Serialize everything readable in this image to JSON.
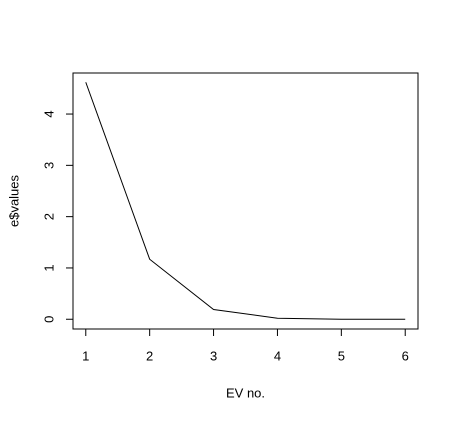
{
  "chart_data": {
    "type": "line",
    "x_label": "EV no.",
    "y_label": "e$values",
    "x": [
      1,
      2,
      3,
      4,
      5,
      6
    ],
    "values": [
      4.62,
      1.17,
      0.19,
      0.02,
      0.0,
      0.0
    ],
    "color": "#000000",
    "xlim": [
      0.8,
      6.2
    ],
    "xticks": [
      1,
      2,
      3,
      4,
      5,
      6
    ],
    "ylim": [
      -0.19,
      4.8
    ],
    "yticks": [
      0,
      1,
      2,
      3,
      4
    ]
  }
}
